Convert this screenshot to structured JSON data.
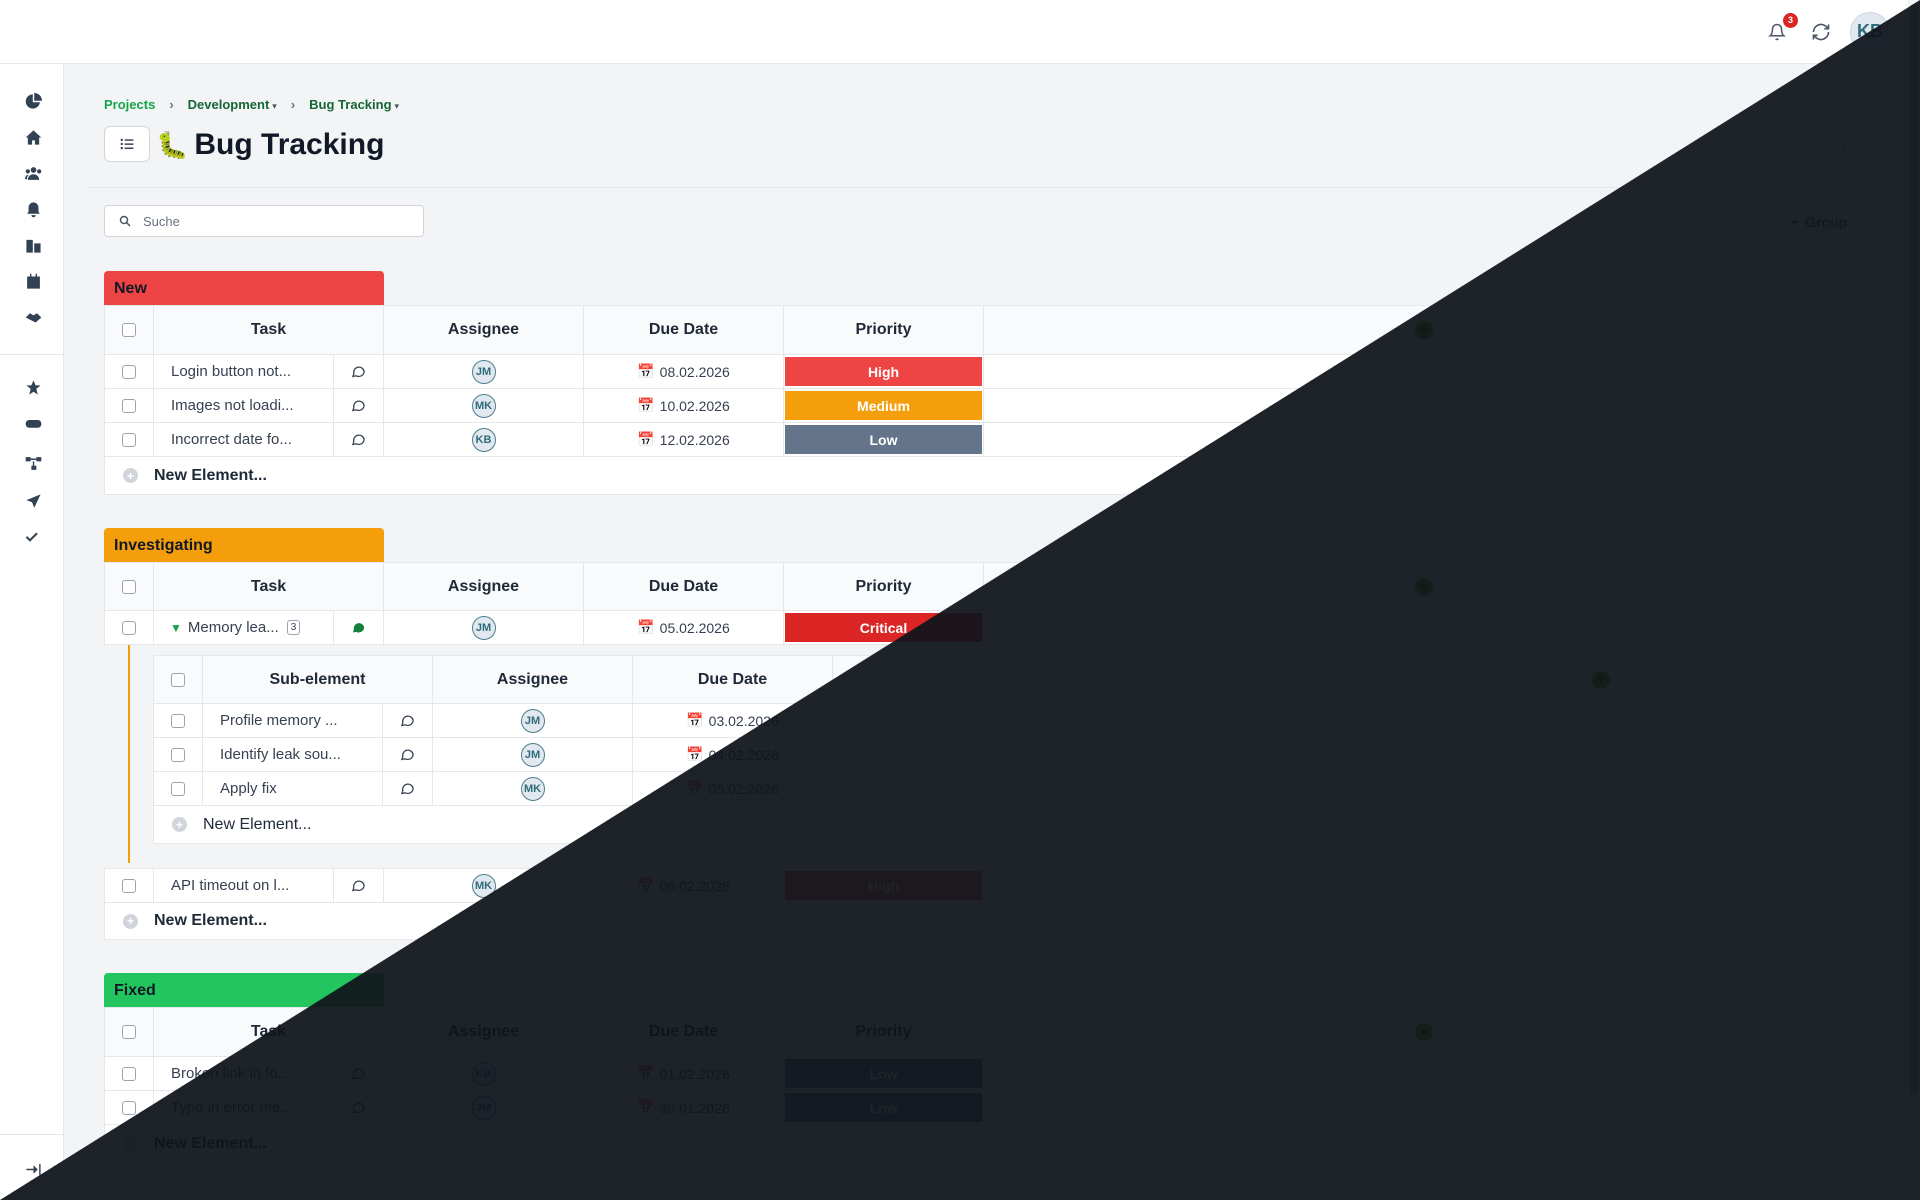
{
  "topbar": {
    "notification_count": "3",
    "user_initials": "KB"
  },
  "sidebar": {
    "items": [
      "pie-chart-icon",
      "home-icon",
      "users-icon",
      "bell-icon",
      "buildings-icon",
      "calendar-icon",
      "handshake-icon",
      "star-icon",
      "gamepad-icon",
      "diagram-icon",
      "send-icon",
      "checks-icon",
      "collapse-icon"
    ]
  },
  "breadcrumb": {
    "projects": "Projects",
    "development": "Development",
    "bug_tracking": "Bug Tracking"
  },
  "page": {
    "title": "Bug Tracking",
    "emoji": "🐛",
    "more_label": "···"
  },
  "search": {
    "placeholder": "Suche"
  },
  "group_button": "Group",
  "columns": {
    "task": "Task",
    "assignee": "Assignee",
    "due_date": "Due Date",
    "priority": "Priority",
    "sub_element": "Sub-element"
  },
  "new_element_label": "New Element...",
  "groups": [
    {
      "name": "New",
      "color": "#ef4444",
      "rows": [
        {
          "task": "Login button not...",
          "assignee": "JM",
          "due": "08.02.2026",
          "priority": "High",
          "priority_color": "#ef4444"
        },
        {
          "task": "Images not loadi...",
          "assignee": "MK",
          "due": "10.02.2026",
          "priority": "Medium",
          "priority_color": "#f59e0b"
        },
        {
          "task": "Incorrect date fo...",
          "assignee": "KB",
          "due": "12.02.2026",
          "priority": "Low",
          "priority_color": "#64748b"
        }
      ]
    },
    {
      "name": "Investigating",
      "color": "#f59e0b",
      "rows": [
        {
          "task": "Memory lea...",
          "subcount": "3",
          "assignee": "JM",
          "due": "05.02.2026",
          "priority": "Critical",
          "priority_color": "#dc2626"
        },
        {
          "task": "API timeout on l...",
          "assignee": "MK",
          "due": "06.02.2026",
          "priority": "High",
          "priority_color": "#ef4444"
        }
      ],
      "subitems": [
        {
          "task": "Profile memory ...",
          "assignee": "JM",
          "due": "03.02.2026"
        },
        {
          "task": "Identify leak sou...",
          "assignee": "JM",
          "due": "04.02.2026"
        },
        {
          "task": "Apply fix",
          "assignee": "MK",
          "due": "05.02.2026"
        }
      ]
    },
    {
      "name": "Fixed",
      "color": "#22c55e",
      "rows": [
        {
          "task": "Broken link in fo...",
          "assignee": "KB",
          "due": "01.02.2026",
          "priority": "Low",
          "priority_color": "#64748b"
        },
        {
          "task": "Typo in error me...",
          "assignee": "JM",
          "due": "30.01.2026",
          "priority": "Low",
          "priority_color": "#64748b"
        }
      ]
    }
  ]
}
